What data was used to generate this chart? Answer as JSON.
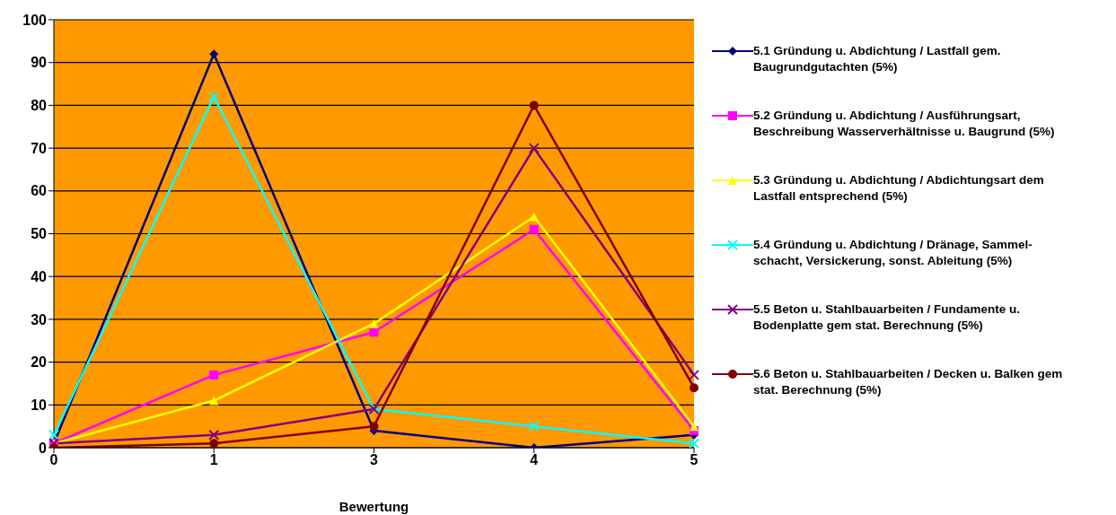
{
  "chart_data": {
    "type": "line",
    "xlabel": "Bewertung",
    "categories": [
      "0",
      "1",
      "3",
      "4",
      "5"
    ],
    "ylim": [
      0,
      100
    ],
    "yticks": [
      0,
      10,
      20,
      30,
      40,
      50,
      60,
      70,
      80,
      90,
      100
    ],
    "grid": "y",
    "legend": "right",
    "series": [
      {
        "name": "5.1 Gründung u. Abdichtung / Lastfall gem. Baugrundgutachten (5%)",
        "color": "#000080",
        "marker": "diamond",
        "values": [
          1,
          92,
          4,
          0,
          3
        ]
      },
      {
        "name": "5.2 Gründung u. Abdichtung / Ausführungsart, Beschreibung Wasserverhältnisse u. Baugrund (5%)",
        "color": "#ff00ff",
        "marker": "square",
        "values": [
          1,
          17,
          27,
          51,
          4
        ]
      },
      {
        "name": "5.3 Gründung u. Abdichtung / Abdichtungsart dem Lastfall entsprechend (5%)",
        "color": "#ffff00",
        "marker": "triangle",
        "values": [
          1,
          11,
          29,
          54,
          5
        ]
      },
      {
        "name": "5.4 Gründung u. Abdichtung / Dränage, Sammel-schacht, Versickerung, sonst. Ableitung (5%)",
        "color": "#00ffff",
        "marker": "cross",
        "values": [
          3,
          82,
          9,
          5,
          1
        ]
      },
      {
        "name": "5.5 Beton u. Stahlbauarbeiten / Fundamente u. Bodenplatte gem stat. Berechnung (5%)",
        "color": "#800080",
        "marker": "cross",
        "values": [
          1,
          3,
          9,
          70,
          17
        ]
      },
      {
        "name": "5.6 Beton u. Stahlbauarbeiten / Decken u. Balken gem stat. Berechnung (5%)",
        "color": "#800000",
        "marker": "circle",
        "values": [
          0,
          1,
          5,
          80,
          14
        ]
      }
    ]
  }
}
